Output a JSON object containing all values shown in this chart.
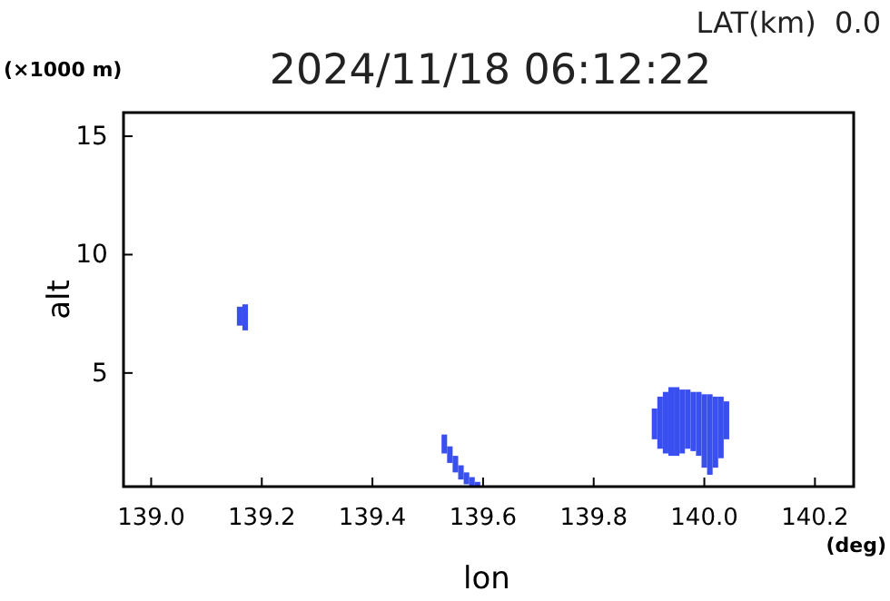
{
  "chart_data": {
    "type": "bar",
    "title": "2024/11/18 06:12:22",
    "subtitle": "LAT(km)  0.0",
    "xlabel": "lon",
    "ylabel": "alt",
    "annotations": [
      "(×1000 m)",
      "(deg)"
    ],
    "xlim": [
      138.95,
      140.27
    ],
    "ylim": [
      0.2,
      16
    ],
    "xticks": [
      {
        "value": 139.0,
        "label": "139.0"
      },
      {
        "value": 139.2,
        "label": "139.2"
      },
      {
        "value": 139.4,
        "label": "139.4"
      },
      {
        "value": 139.6,
        "label": "139.6"
      },
      {
        "value": 139.8,
        "label": "139.8"
      },
      {
        "value": 140.0,
        "label": "140.0"
      },
      {
        "value": 140.2,
        "label": "140.2"
      }
    ],
    "yticks": [
      5,
      10,
      15
    ],
    "grid": false,
    "series": [
      {
        "color": "#3a4ff0",
        "x": [
          139.16,
          139.17
        ],
        "base": [
          7.0,
          6.8
        ],
        "values": [
          0.8,
          1.1
        ]
      },
      {
        "color": "#3a4ff0",
        "x": [
          139.53,
          139.54,
          139.55,
          139.56,
          139.57,
          139.58,
          139.59
        ],
        "base": [
          1.6,
          1.2,
          0.8,
          0.5,
          0.3,
          0.2,
          0.2
        ],
        "values": [
          0.8,
          0.7,
          0.7,
          0.6,
          0.5,
          0.4,
          0.2
        ]
      },
      {
        "color": "#3a4ff0",
        "x": [
          139.91,
          139.92,
          139.93,
          139.94,
          139.95,
          139.96,
          139.97,
          139.98,
          139.99,
          140.0,
          140.01,
          140.02,
          140.03,
          140.04
        ],
        "base": [
          2.2,
          1.8,
          1.6,
          1.5,
          1.5,
          1.6,
          1.8,
          1.7,
          1.5,
          1.0,
          0.7,
          1.0,
          1.4,
          2.2
        ],
        "values": [
          1.3,
          2.2,
          2.6,
          2.9,
          2.9,
          2.7,
          2.5,
          2.5,
          2.7,
          3.1,
          3.4,
          3.0,
          2.6,
          1.6
        ]
      }
    ]
  }
}
